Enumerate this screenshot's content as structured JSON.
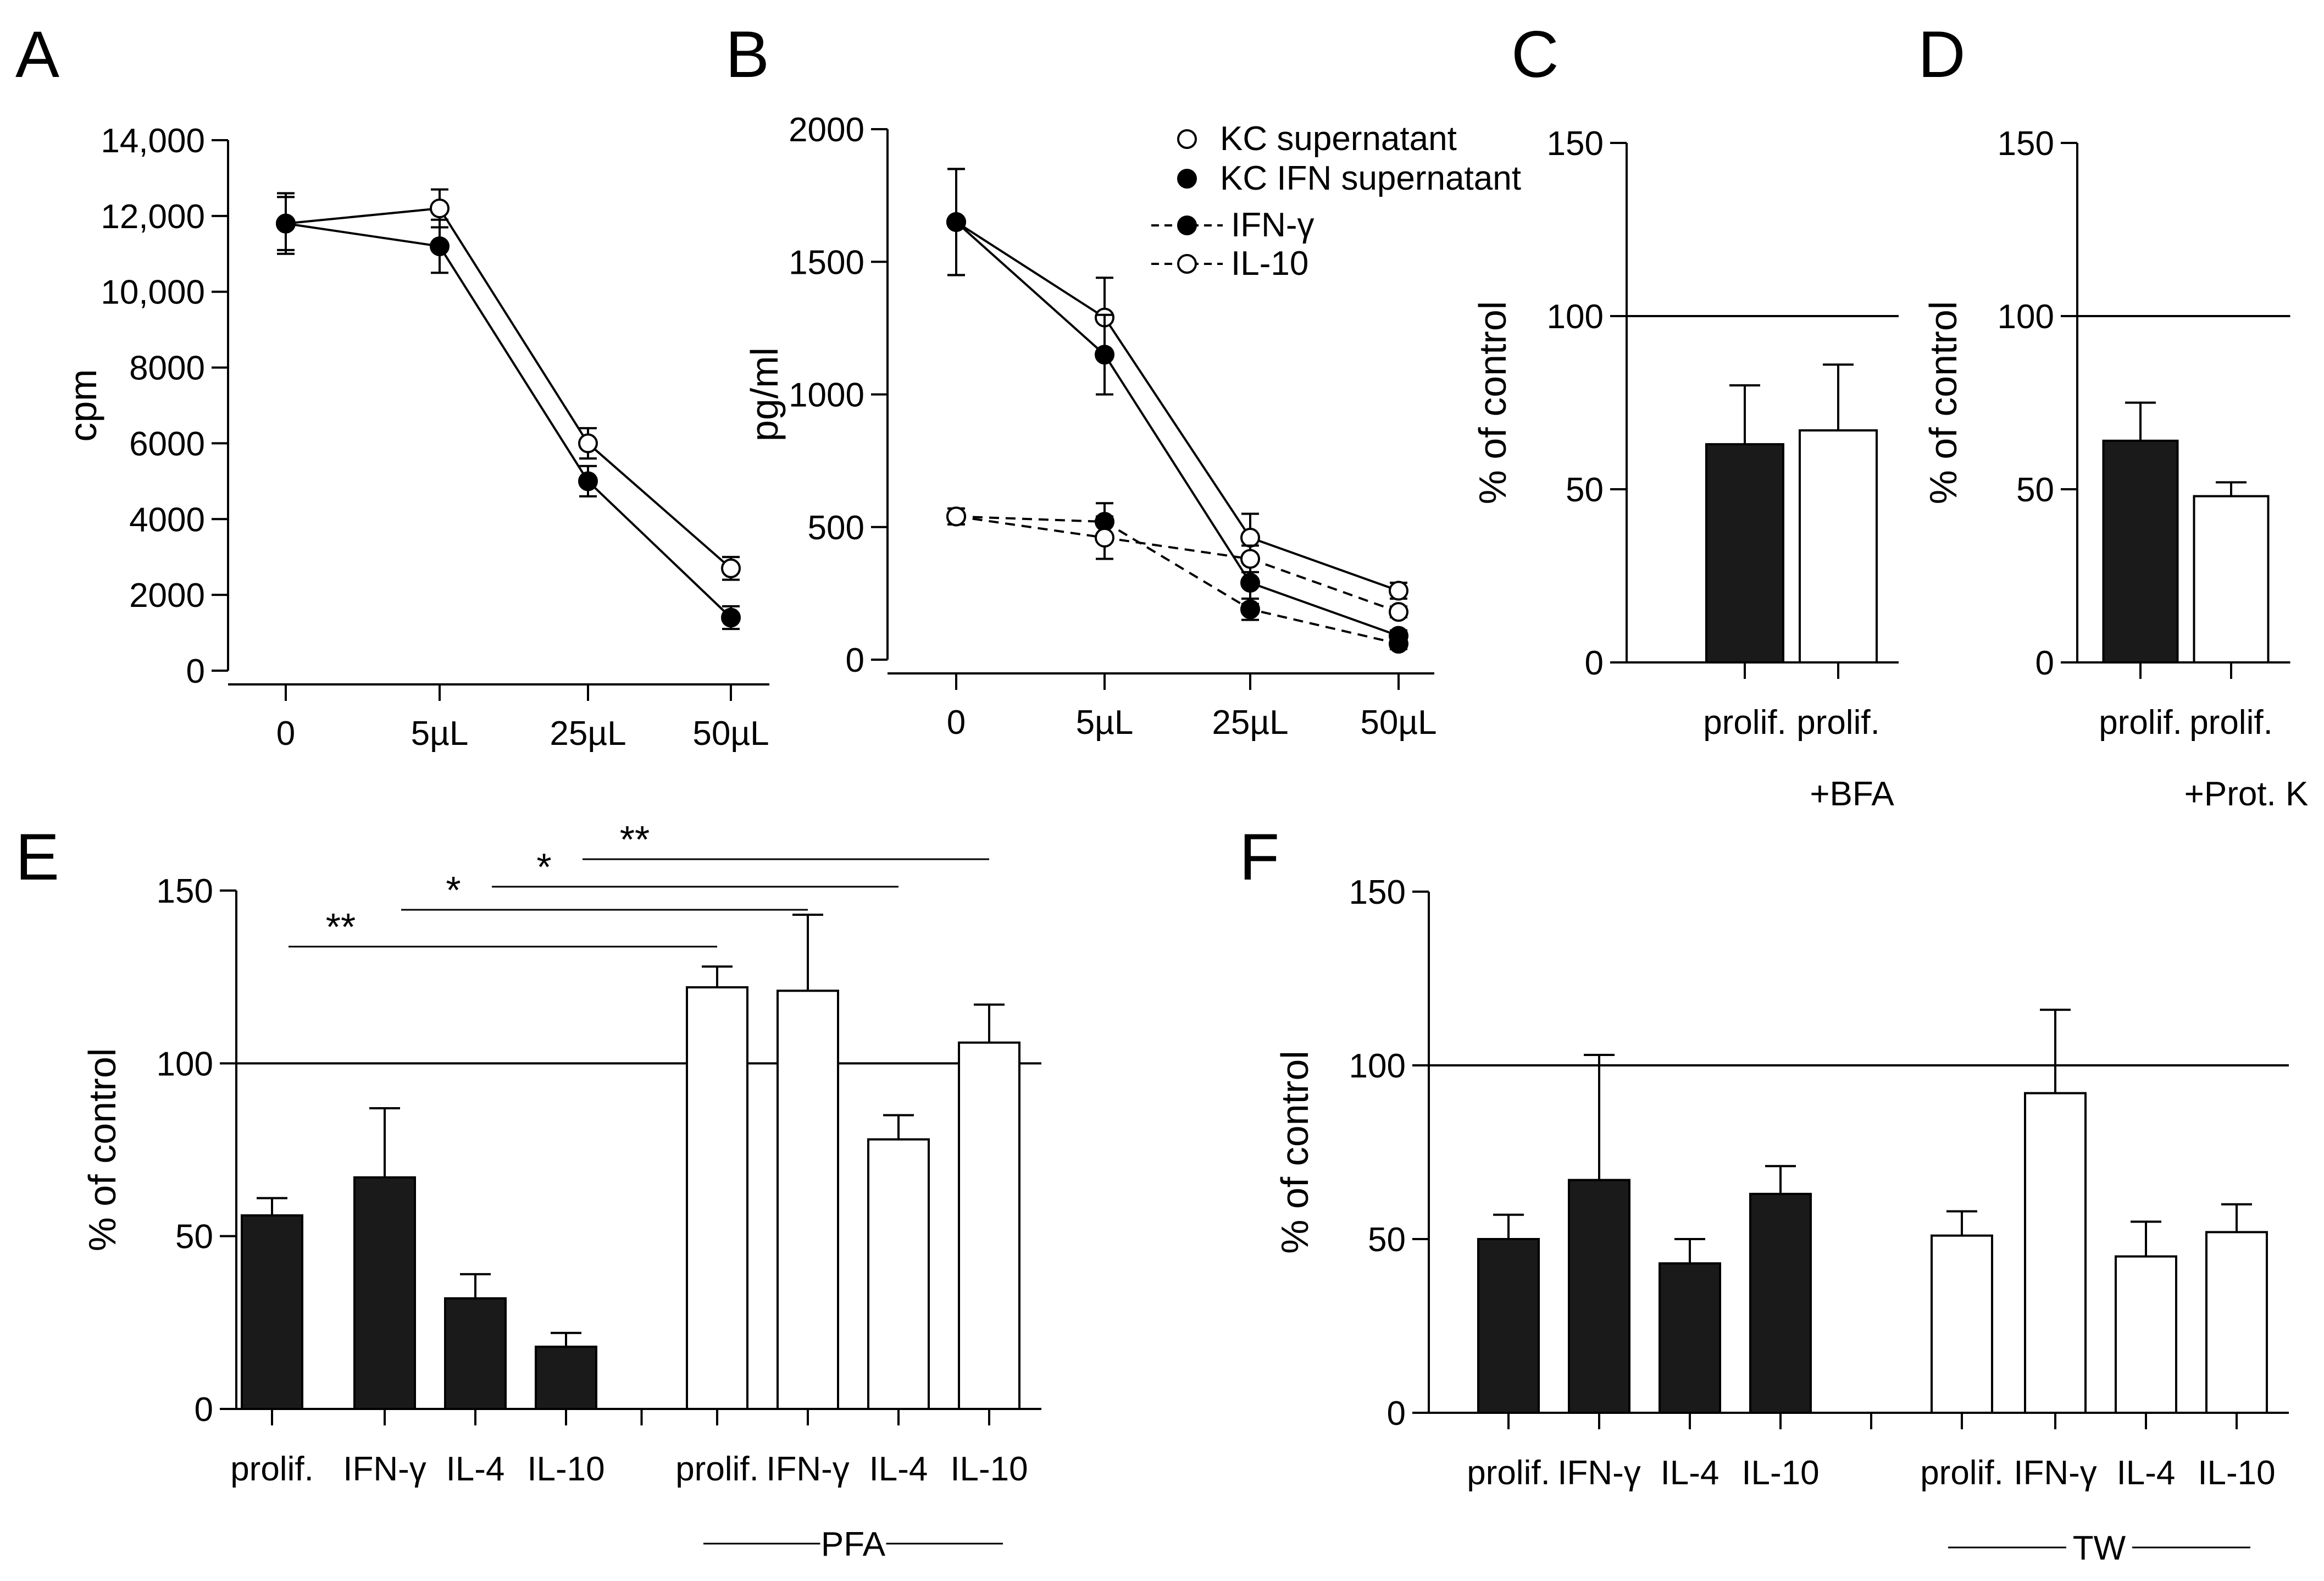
{
  "chart_data": [
    {
      "panel": "A",
      "type": "line",
      "categories": [
        "0",
        "5µL",
        "25µL",
        "50µL"
      ],
      "ylabel": "cpm",
      "ylim": [
        0,
        14000
      ],
      "yticks": [
        0,
        2000,
        4000,
        6000,
        8000,
        10000,
        12000,
        14000
      ],
      "ytick_labels": [
        "0",
        "2000",
        "4000",
        "6000",
        "8000",
        "10,000",
        "12,000",
        "14,000"
      ],
      "series": [
        {
          "marker": "open",
          "values": [
            11800,
            12200,
            6000,
            2700
          ],
          "err": [
            700,
            500,
            400,
            300
          ]
        },
        {
          "marker": "filled",
          "values": [
            11800,
            11200,
            5000,
            1400
          ],
          "err": [
            800,
            700,
            400,
            300
          ]
        }
      ]
    },
    {
      "panel": "B",
      "type": "line",
      "categories": [
        "0",
        "5µL",
        "25µL",
        "50µL"
      ],
      "ylabel": "pg/ml",
      "ylim": [
        0,
        2000
      ],
      "yticks": [
        0,
        500,
        1000,
        1500,
        2000
      ],
      "ytick_labels": [
        "0",
        "500",
        "1000",
        "1500",
        "2000"
      ],
      "legend": [
        {
          "label": "KC supernatant",
          "marker": "open",
          "dashed": false
        },
        {
          "label": "KC IFN supernatant",
          "marker": "filled",
          "dashed": false
        },
        {
          "label": "IFN-γ",
          "marker": "filled",
          "dashed": true
        },
        {
          "label": "IL-10",
          "marker": "open",
          "dashed": true
        }
      ],
      "series": [
        {
          "marker": "open",
          "dashed": false,
          "values": [
            1650,
            1290,
            460,
            260
          ],
          "err": [
            200,
            150,
            90,
            30
          ]
        },
        {
          "marker": "filled",
          "dashed": false,
          "values": [
            1650,
            1150,
            290,
            90
          ],
          "err": [
            200,
            150,
            80,
            20
          ]
        },
        {
          "marker": "filled",
          "dashed": true,
          "values": [
            540,
            520,
            190,
            60
          ],
          "err": [
            30,
            70,
            40,
            20
          ]
        },
        {
          "marker": "open",
          "dashed": true,
          "values": [
            540,
            460,
            380,
            180
          ],
          "err": [
            30,
            80,
            50,
            20
          ]
        }
      ]
    },
    {
      "panel": "C",
      "type": "bar",
      "categories": [
        "prolif.",
        "prolif."
      ],
      "sublabel": "+BFA",
      "ylabel": "% of control",
      "ylim": [
        0,
        150
      ],
      "yticks": [
        0,
        50,
        100,
        150
      ],
      "ytick_labels": [
        "0",
        "50",
        "100",
        "150"
      ],
      "reference_line": 100,
      "values": [
        63,
        67
      ],
      "err": [
        17,
        19
      ],
      "fill": [
        "filled",
        "open"
      ]
    },
    {
      "panel": "D",
      "type": "bar",
      "categories": [
        "prolif.",
        "prolif."
      ],
      "sublabel": "+Prot. K",
      "ylabel": "% of control",
      "ylim": [
        0,
        150
      ],
      "yticks": [
        0,
        50,
        100,
        150
      ],
      "ytick_labels": [
        "0",
        "50",
        "100",
        "150"
      ],
      "reference_line": 100,
      "values": [
        64,
        48
      ],
      "err": [
        11,
        4
      ],
      "fill": [
        "filled",
        "open"
      ]
    },
    {
      "panel": "E",
      "type": "bar",
      "categories": [
        "prolif.",
        "IFN-γ",
        "IL-4",
        "IL-10",
        "prolif.",
        "IFN-γ",
        "IL-4",
        "IL-10"
      ],
      "group_label": "PFA",
      "ylabel": "% of control",
      "ylim": [
        0,
        150
      ],
      "yticks": [
        0,
        50,
        100,
        150
      ],
      "ytick_labels": [
        "0",
        "50",
        "100",
        "150"
      ],
      "reference_line": 100,
      "values": [
        56,
        67,
        32,
        18,
        122,
        121,
        78,
        106
      ],
      "err": [
        5,
        20,
        7,
        4,
        6,
        22,
        7,
        11
      ],
      "fill": [
        "filled",
        "filled",
        "filled",
        "filled",
        "open",
        "open",
        "open",
        "open"
      ],
      "significance": [
        {
          "from": 0,
          "to": 4,
          "label": "**"
        },
        {
          "from": 1,
          "to": 5,
          "label": "*"
        },
        {
          "from": 2,
          "to": 6,
          "label": "*"
        },
        {
          "from": 3,
          "to": 7,
          "label": "**"
        }
      ]
    },
    {
      "panel": "F",
      "type": "bar",
      "categories": [
        "prolif.",
        "IFN-γ",
        "IL-4",
        "IL-10",
        "prolif.",
        "IFN-γ",
        "IL-4",
        "IL-10"
      ],
      "group_label": "TW",
      "ylabel": "% of control",
      "ylim": [
        0,
        150
      ],
      "yticks": [
        0,
        50,
        100,
        150
      ],
      "ytick_labels": [
        "0",
        "50",
        "100",
        "150"
      ],
      "reference_line": 100,
      "values": [
        50,
        67,
        43,
        63,
        51,
        92,
        45,
        52
      ],
      "err": [
        7,
        36,
        7,
        8,
        7,
        24,
        10,
        8
      ],
      "fill": [
        "filled",
        "filled",
        "filled",
        "filled",
        "open",
        "open",
        "open",
        "open"
      ]
    }
  ]
}
